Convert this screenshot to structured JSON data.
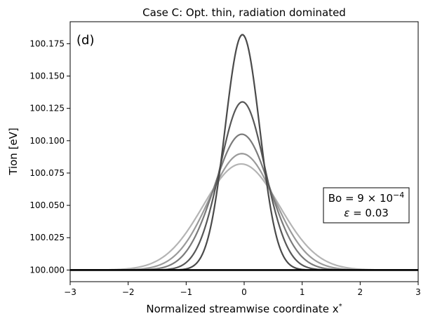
{
  "chart_data": {
    "type": "line",
    "title": "Case C: Opt. thin, radiation dominated",
    "xlabel": "Normalized streamwise coordinate x",
    "xlabel_superscript": "*",
    "ylabel": "Tion [eV]",
    "xlim": [
      -3,
      3
    ],
    "ylim": [
      99.991,
      100.192
    ],
    "xticks": [
      -3,
      -2,
      -1,
      0,
      1,
      2,
      3
    ],
    "xtick_labels": [
      "−3",
      "−2",
      "−1",
      "0",
      "1",
      "2",
      "3"
    ],
    "yticks": [
      100.0,
      100.025,
      100.05,
      100.075,
      100.1,
      100.125,
      100.15,
      100.175
    ],
    "ytick_labels": [
      "100.000",
      "100.025",
      "100.050",
      "100.075",
      "100.100",
      "100.125",
      "100.150",
      "100.175"
    ],
    "panel_label": "(d)",
    "annotation": {
      "bo_prefix": "Bo",
      "bo_eq": " = 9 × 10",
      "bo_exp": "−4",
      "eps_symbol": "ε",
      "eps_rest": " = 0.03"
    },
    "baseline": 100.0,
    "series": [
      {
        "name": "curve-1",
        "peak": 100.182,
        "center": -0.03,
        "width": 0.42,
        "color": "#4a4a4a",
        "opacity": 1.0
      },
      {
        "name": "curve-2",
        "peak": 100.13,
        "center": -0.03,
        "width": 0.55,
        "color": "#575757",
        "opacity": 1.0
      },
      {
        "name": "curve-3",
        "peak": 100.105,
        "center": -0.04,
        "width": 0.68,
        "color": "#7a7a7a",
        "opacity": 1.0
      },
      {
        "name": "curve-4",
        "peak": 100.09,
        "center": -0.04,
        "width": 0.8,
        "color": "#9a9a9a",
        "opacity": 1.0
      },
      {
        "name": "curve-5",
        "peak": 100.082,
        "center": -0.05,
        "width": 0.93,
        "color": "#b4b4b4",
        "opacity": 1.0
      }
    ]
  }
}
